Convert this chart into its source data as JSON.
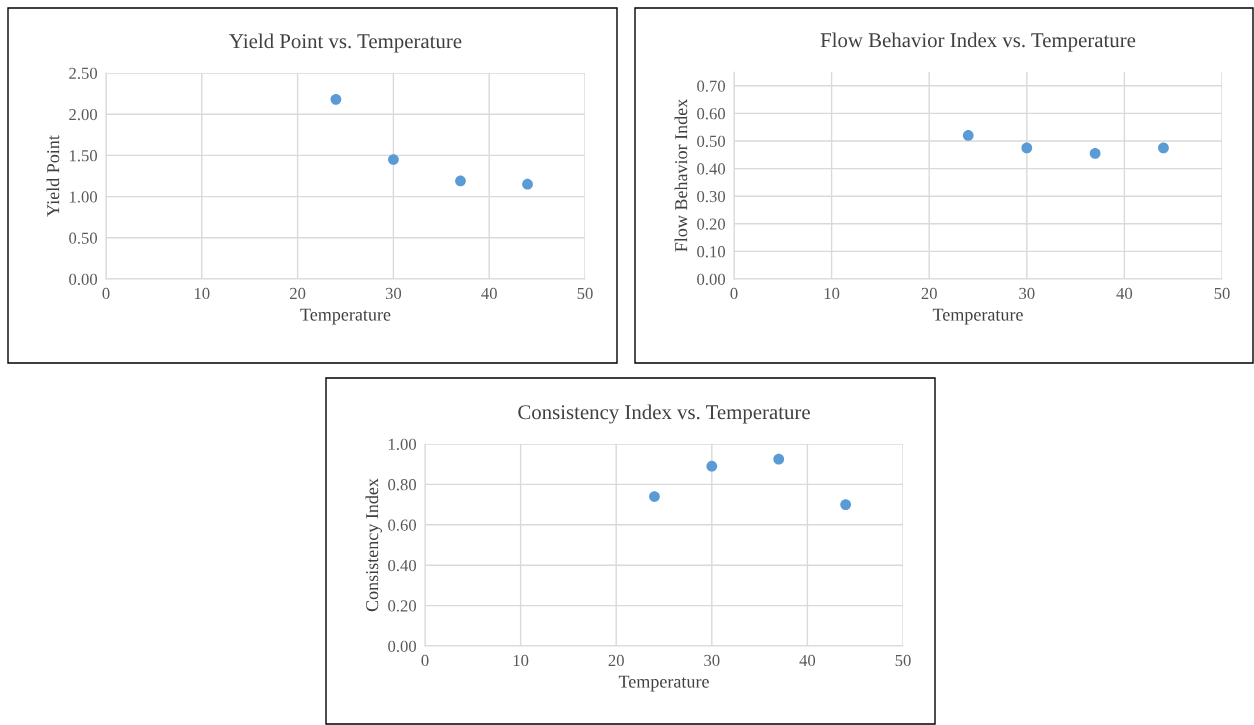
{
  "chart_data": [
    {
      "type": "scatter",
      "title": "Yield Point vs. Temperature",
      "xlabel": "Temperature",
      "ylabel": "Yield Point",
      "x": [
        24,
        30,
        37,
        44
      ],
      "values": [
        2.18,
        1.45,
        1.19,
        1.15
      ],
      "color": "#5b9bd5",
      "marker": "circle",
      "grid": true,
      "xlim": [
        0,
        50
      ],
      "xticks": [
        0,
        10,
        20,
        30,
        40,
        50
      ],
      "ylim": [
        0,
        2.5
      ],
      "yticks": [
        {
          "value": 0,
          "label": "0.00"
        },
        {
          "value": 0.5,
          "label": "0.50"
        },
        {
          "value": 1,
          "label": "1.00"
        },
        {
          "value": 1.5,
          "label": "1.50"
        },
        {
          "value": 2,
          "label": "2.00"
        },
        {
          "value": 2.5,
          "label": "2.50"
        }
      ]
    },
    {
      "type": "scatter",
      "title": "Flow Behavior Index vs. Temperature",
      "xlabel": "Temperature",
      "ylabel": "Flow Behavior Index",
      "x": [
        24,
        30,
        37,
        44
      ],
      "values": [
        0.52,
        0.475,
        0.455,
        0.475
      ],
      "color": "#5b9bd5",
      "marker": "circle",
      "grid": true,
      "xlim": [
        0,
        50
      ],
      "xticks": [
        0,
        10,
        20,
        30,
        40,
        50
      ],
      "ylim": [
        0,
        0.75
      ],
      "yticks": [
        {
          "value": 0,
          "label": "0.00"
        },
        {
          "value": 0.1,
          "label": "0.10"
        },
        {
          "value": 0.2,
          "label": "0.20"
        },
        {
          "value": 0.3,
          "label": "0.30"
        },
        {
          "value": 0.4,
          "label": "0.40"
        },
        {
          "value": 0.5,
          "label": "0.50"
        },
        {
          "value": 0.6,
          "label": "0.60"
        },
        {
          "value": 0.7,
          "label": "0.70"
        }
      ]
    },
    {
      "type": "scatter",
      "title": "Consistency Index vs. Temperature",
      "xlabel": "Temperature",
      "ylabel": "Consistency Index",
      "x": [
        24,
        30,
        37,
        44
      ],
      "values": [
        0.74,
        0.89,
        0.925,
        0.7
      ],
      "color": "#5b9bd5",
      "marker": "circle",
      "grid": true,
      "xlim": [
        0,
        50
      ],
      "xticks": [
        0,
        10,
        20,
        30,
        40,
        50
      ],
      "ylim": [
        0,
        1
      ],
      "yticks": [
        {
          "value": 0,
          "label": "0.00"
        },
        {
          "value": 0.2,
          "label": "0.20"
        },
        {
          "value": 0.4,
          "label": "0.40"
        },
        {
          "value": 0.6,
          "label": "0.60"
        },
        {
          "value": 0.8,
          "label": "0.80"
        },
        {
          "value": 1,
          "label": "1.00"
        }
      ]
    }
  ]
}
